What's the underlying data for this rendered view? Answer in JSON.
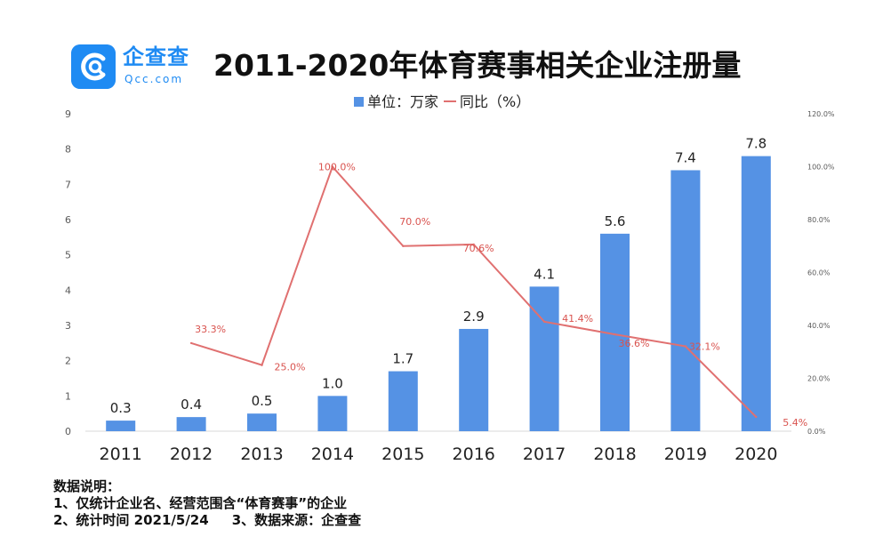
{
  "brand": {
    "name": "企查查",
    "domain": "Qcc.com",
    "accent_color": "#1f8bf3",
    "icon": "qcc-logo-icon"
  },
  "notes": {
    "heading": "数据说明：",
    "line1": "1、仅统计企业名、经营范围含“体育赛事”的企业",
    "line2a": "2、统计时间 2021/5/24",
    "line2b": "3、数据来源：企查查"
  },
  "chart_data": {
    "type": "bar",
    "title": "2011-2020年体育赛事相关企业注册量",
    "categories": [
      "2011",
      "2012",
      "2013",
      "2014",
      "2015",
      "2016",
      "2017",
      "2018",
      "2019",
      "2020"
    ],
    "series": [
      {
        "name": "单位：万家",
        "type": "bar",
        "axis": "left",
        "color": "#5592e4",
        "values": [
          0.3,
          0.4,
          0.5,
          1.0,
          1.7,
          2.9,
          4.1,
          5.6,
          7.4,
          7.8
        ],
        "labels": [
          "0.3",
          "0.4",
          "0.5",
          "1.0",
          "1.7",
          "2.9",
          "4.1",
          "5.6",
          "7.4",
          "7.8"
        ]
      },
      {
        "name": "同比（%）",
        "type": "line",
        "axis": "right",
        "color": "#e07070",
        "values": [
          null,
          33.3,
          25.0,
          100.0,
          70.0,
          70.6,
          41.4,
          36.6,
          32.1,
          5.4
        ],
        "labels": [
          "",
          "33.3%",
          "25.0%",
          "100.0%",
          "70.0%",
          "70.6%",
          "41.4%",
          "36.6%",
          "32.1%",
          "5.4%"
        ]
      }
    ],
    "y_left": {
      "ylim": [
        0,
        9
      ],
      "ticks": [
        "0",
        "1",
        "2",
        "3",
        "4",
        "5",
        "6",
        "7",
        "8",
        "9"
      ]
    },
    "y_right": {
      "ylim": [
        0,
        120
      ],
      "ticks": [
        "0.0%",
        "20.0%",
        "40.0%",
        "60.0%",
        "80.0%",
        "100.0%",
        "120.0%"
      ]
    },
    "grid": false,
    "legend_position": "top-center"
  }
}
